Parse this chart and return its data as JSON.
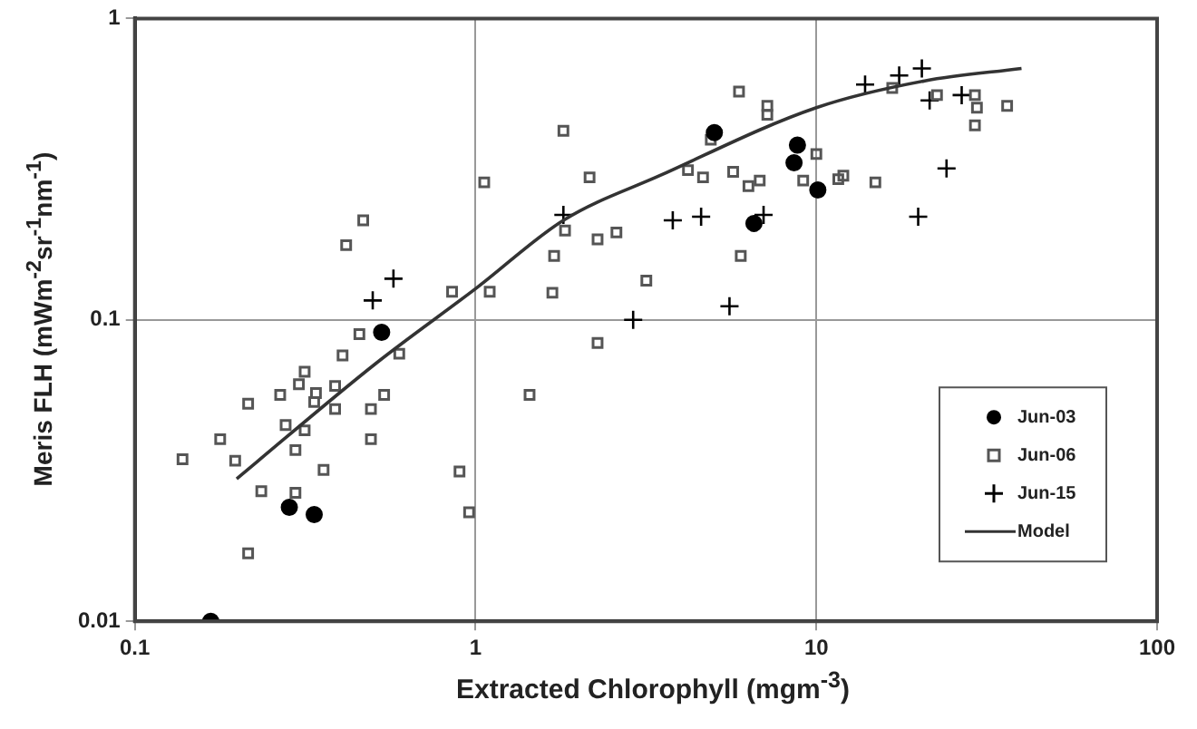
{
  "chart_data": {
    "type": "scatter",
    "xlabel": "Extracted Chlorophyll (mgm$^{-3}$)",
    "ylabel": "Meris FLH (mWm$^{-2}$sr$^{-1}$nm$^{-1}$)",
    "log": "xy",
    "xlim": [
      0.1,
      100
    ],
    "ylim": [
      0.01,
      1
    ],
    "xticks": [
      0.1,
      1,
      10,
      100
    ],
    "yticks": [
      0.01,
      0.1,
      1
    ],
    "grid": true,
    "legend": "bottom right",
    "series": [
      {
        "name": "Jun-03",
        "color": "#000000",
        "marker": "circle",
        "x": [
          0.53,
          0.284,
          0.336,
          0.167,
          5.02,
          8.8,
          8.6,
          10.1,
          6.56
        ],
        "values": [
          0.091,
          0.0239,
          0.0226,
          0.01,
          0.418,
          0.38,
          0.332,
          0.27,
          0.209
        ]
      },
      {
        "name": "Jun-06",
        "color": "#555555",
        "marker": "square",
        "x": [
          1.81,
          2.16,
          1.06,
          0.468,
          0.417,
          1.7,
          1.83,
          2.28,
          2.59,
          0.853,
          1.1,
          1.68,
          3.17,
          2.28,
          0.456,
          0.407,
          0.597,
          5.93,
          7.18,
          7.18,
          4.9,
          4.2,
          4.65,
          5.7,
          6.32,
          6.82,
          9.15,
          10.0,
          11.6,
          12.0,
          14.9,
          6.0,
          16.7,
          22.6,
          29.2,
          29.6,
          29.2,
          36.3,
          0.315,
          0.303,
          0.34,
          0.387,
          0.336,
          0.387,
          0.267,
          0.215,
          0.539,
          0.493,
          0.277,
          0.315,
          0.178,
          0.493,
          0.296,
          0.138,
          0.197,
          0.358,
          0.897,
          0.235,
          0.296,
          0.957,
          0.215,
          1.44
        ],
        "values": [
          0.424,
          0.297,
          0.286,
          0.214,
          0.177,
          0.163,
          0.198,
          0.185,
          0.195,
          0.124,
          0.124,
          0.123,
          0.135,
          0.0838,
          0.0897,
          0.0762,
          0.0772,
          0.572,
          0.513,
          0.479,
          0.396,
          0.314,
          0.297,
          0.31,
          0.278,
          0.29,
          0.29,
          0.355,
          0.293,
          0.301,
          0.286,
          0.163,
          0.588,
          0.557,
          0.557,
          0.506,
          0.442,
          0.513,
          0.0673,
          0.0612,
          0.0572,
          0.0604,
          0.0534,
          0.0506,
          0.0564,
          0.0527,
          0.0564,
          0.0506,
          0.0448,
          0.043,
          0.0402,
          0.0402,
          0.037,
          0.0345,
          0.0341,
          0.0318,
          0.0314,
          0.027,
          0.0267,
          0.023,
          0.0168,
          0.0564
        ]
      },
      {
        "name": "Jun-15",
        "color": "#000000",
        "marker": "cross",
        "x": [
          1.81,
          0.574,
          0.499,
          2.9,
          3.79,
          4.59,
          7.0,
          5.56,
          13.9,
          17.5,
          20.4,
          21.5,
          26.7,
          24.1,
          19.9
        ],
        "values": [
          0.223,
          0.137,
          0.116,
          0.1,
          0.214,
          0.22,
          0.223,
          0.111,
          0.604,
          0.647,
          0.683,
          0.535,
          0.557,
          0.318,
          0.22
        ]
      },
      {
        "name": "Model",
        "type": "line",
        "color": "#333333",
        "marker": "none",
        "line_style": "solid",
        "x": [
          0.199,
          0.512,
          1.01,
          1.81,
          3.47,
          10.0,
          20.8,
          40
        ],
        "values": [
          0.0297,
          0.072,
          0.128,
          0.214,
          0.301,
          0.506,
          0.621,
          0.683
        ]
      }
    ]
  }
}
